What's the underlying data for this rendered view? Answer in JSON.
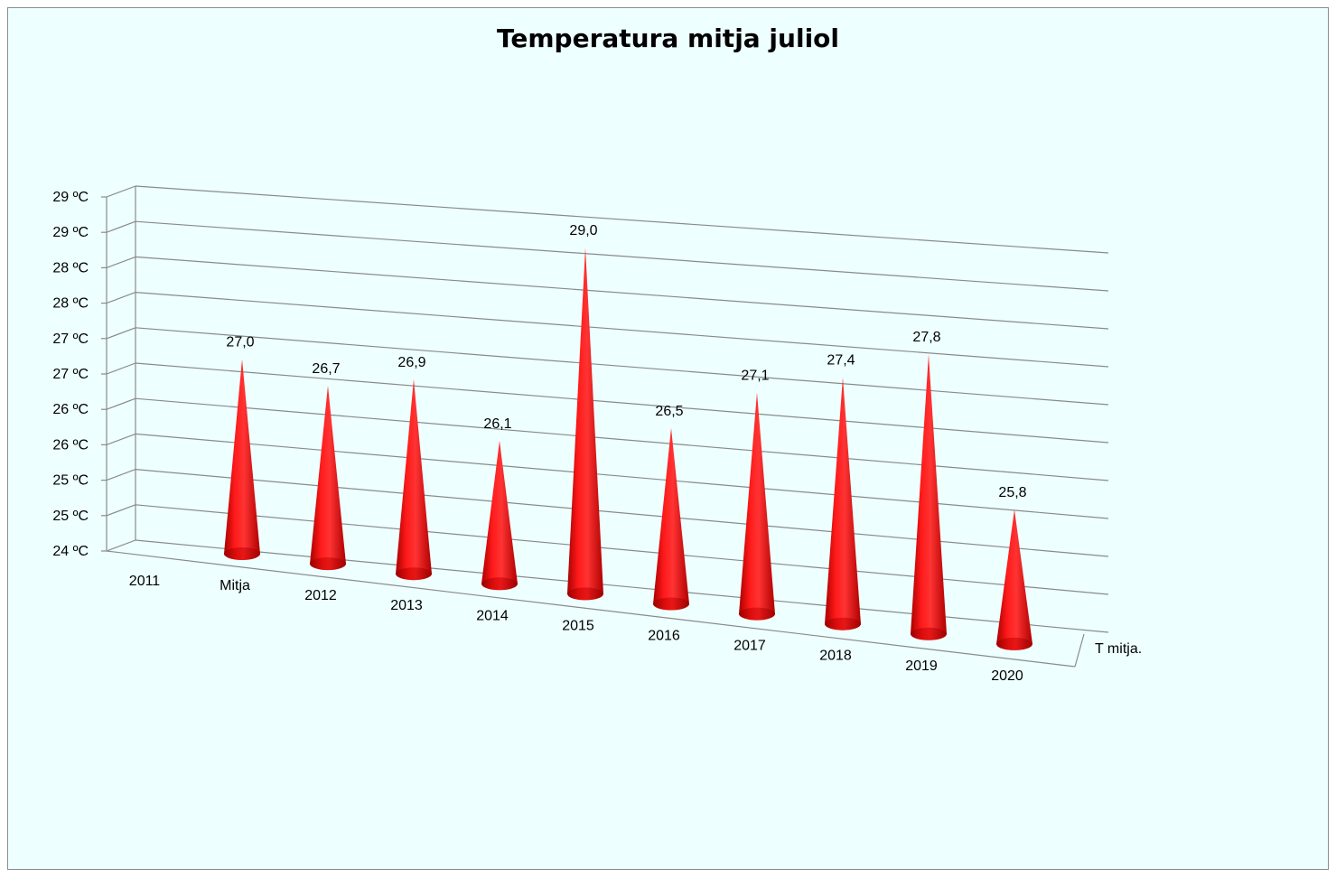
{
  "colors": {
    "background": "#eeffff",
    "cone": "#ff0000",
    "grid": "#8a8a8a"
  },
  "chart_data": {
    "type": "bar",
    "bar_shape": "cone-3d",
    "title": "Temperatura mitja juliol",
    "categories": [
      "2011",
      "Mitja",
      "2012",
      "2013",
      "2014",
      "2015",
      "2016",
      "2017",
      "2018",
      "2019",
      "2020"
    ],
    "series": [
      {
        "name": "T mitja.",
        "values": [
          null,
          27.0,
          26.7,
          26.9,
          26.1,
          29.0,
          26.5,
          27.1,
          27.4,
          27.8,
          25.8
        ]
      }
    ],
    "data_labels": [
      "",
      "27,0",
      "26,7",
      "26,9",
      "26,1",
      "29,0",
      "26,5",
      "27,1",
      "27,4",
      "27,8",
      "25,8"
    ],
    "y_ticks": [
      "24 ºC",
      "25 ºC",
      "25 ºC",
      "26 ºC",
      "26 ºC",
      "27 ºC",
      "27 ºC",
      "28 ºC",
      "28 ºC",
      "29 ºC",
      "29 ºC"
    ],
    "ylim": [
      24,
      29.5
    ],
    "grid": true,
    "legend": "none"
  }
}
